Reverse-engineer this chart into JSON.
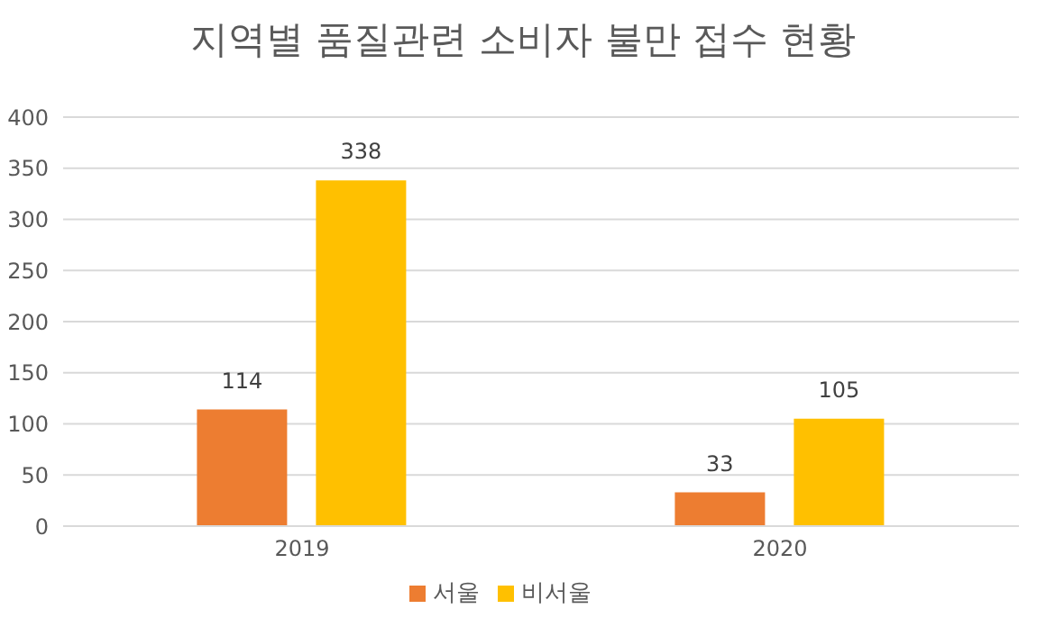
{
  "chart_data": {
    "type": "bar",
    "title": "지역별 품질관련 소비자 불만 접수 현황",
    "categories": [
      "2019",
      "2020"
    ],
    "series": [
      {
        "name": "서울",
        "color": "#ed7d31",
        "values": [
          114,
          33
        ]
      },
      {
        "name": "비서울",
        "color": "#ffc000",
        "values": [
          338,
          105
        ]
      }
    ],
    "ylim": [
      0,
      400
    ],
    "yticks": [
      0,
      50,
      100,
      150,
      200,
      250,
      300,
      350,
      400
    ],
    "grid": "y",
    "legend": "bottom",
    "data_labels": true
  }
}
